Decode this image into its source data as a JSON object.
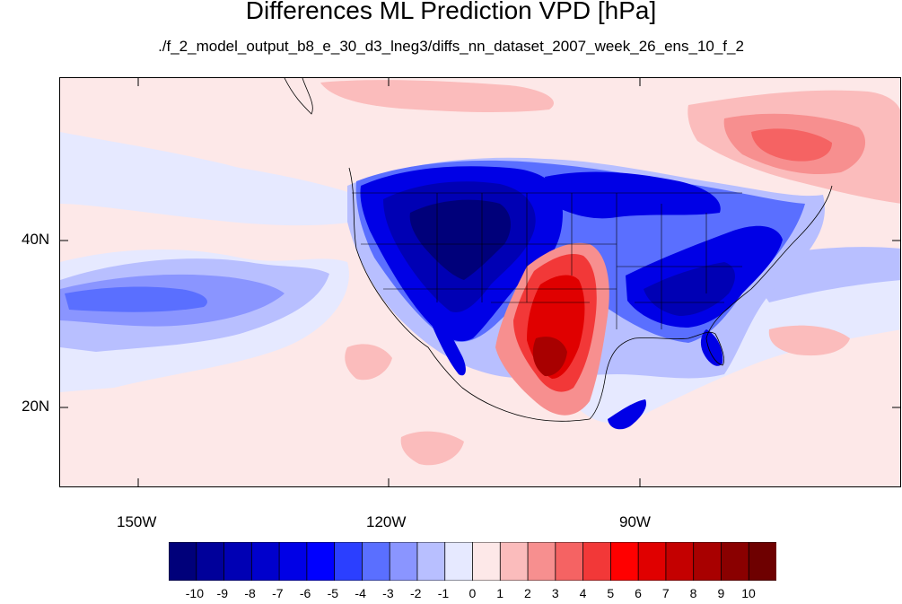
{
  "title": "Differences ML Prediction VPD [hPa]",
  "subtitle": "./f_2_model_output_b8_e_30_d3_lneg3/diffs_nn_dataset_2007_week_26_ens_10_f_2",
  "map": {
    "projection": "cylindrical equidistant",
    "lon_range": [
      -160,
      -58
    ],
    "lat_range": [
      11,
      60
    ],
    "lat_labels": [
      "40N",
      "20N"
    ],
    "lon_labels": [
      "150W",
      "120W",
      "90W"
    ],
    "features": [
      "coastlines",
      "US state boundaries",
      "Canada/Mexico borders"
    ],
    "background_level_color": "#fde8e8"
  },
  "colorbar": {
    "labels": [
      "-10",
      "-9",
      "-8",
      "-7",
      "-6",
      "-5",
      "-4",
      "-3",
      "-2",
      "-1",
      "0",
      "1",
      "2",
      "3",
      "4",
      "5",
      "6",
      "7",
      "8",
      "9",
      "10"
    ],
    "colors": [
      "#00007a",
      "#00009a",
      "#0000b4",
      "#0000cc",
      "#0000e6",
      "#0000ff",
      "#2b3fff",
      "#5a6fff",
      "#8a95ff",
      "#b8bfff",
      "#e6e9ff",
      "#fde8e8",
      "#fbbcbc",
      "#f78f8f",
      "#f56363",
      "#f23838",
      "#ff0000",
      "#e00000",
      "#c40000",
      "#a80000",
      "#8a0000",
      "#6e0000"
    ]
  }
}
